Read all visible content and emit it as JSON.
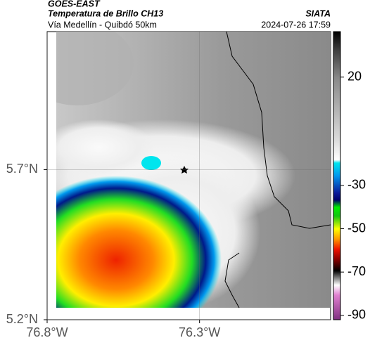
{
  "header": {
    "source": "GOES-EAST",
    "title": "Temperatura de Brillo CH13",
    "subtitle": "Vía Medellín - Quibdó 50km",
    "brand": "SIATA",
    "timestamp": "2024-07-26 17:59"
  },
  "map": {
    "xlim": [
      -76.8,
      -75.87
    ],
    "ylim": [
      5.2,
      6.16
    ],
    "xticks": [
      {
        "value": -76.8,
        "label": "76.8°W"
      },
      {
        "value": -76.3,
        "label": "76.3°W"
      }
    ],
    "yticks": [
      {
        "value": 5.7,
        "label": "5.7°N"
      },
      {
        "value": 5.2,
        "label": "5.2°N"
      }
    ],
    "grid": true
  },
  "colorbar": {
    "clim": [
      -92,
      41
    ],
    "ticks": [
      20,
      -30,
      -50,
      -70,
      -90
    ]
  }
}
